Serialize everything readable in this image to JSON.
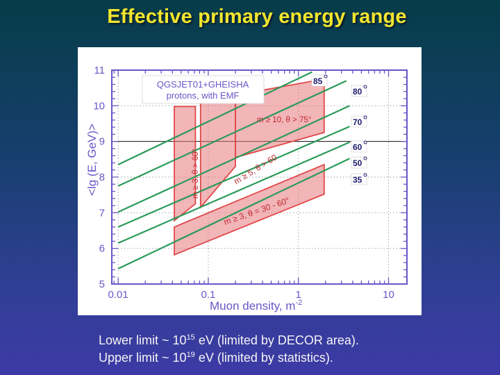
{
  "slide": {
    "title": "Effective primary energy range"
  },
  "captions": [
    {
      "before": "Lower limit ~ 10",
      "exp": "15",
      "after": " eV (limited by DECOR area)."
    },
    {
      "before": "Upper limit ~ 10",
      "exp": "19",
      "after": " eV (limited by statistics)."
    }
  ],
  "chart_data": {
    "type": "line",
    "title": "",
    "xlabel": "Muon density, m",
    "xlabel_superscript": "-2",
    "ylabel": "<lg (E, GeV)>",
    "x_scale": "log",
    "xlim": [
      0.0085,
      16
    ],
    "ylim": [
      5,
      11
    ],
    "x_ticks": [
      0.01,
      0.1,
      1,
      10
    ],
    "x_tick_labels": [
      "0.01",
      "0.1",
      "1",
      "10"
    ],
    "y_ticks": [
      5,
      6,
      7,
      8,
      9,
      10,
      11
    ],
    "y_tick_labels": [
      "5",
      "6",
      "7",
      "8",
      "9",
      "10",
      "11"
    ],
    "grid": true,
    "reference_line_y": 9,
    "legend_box": {
      "line1": "QGSJET01+GHEISHA",
      "line2": "protons, with EMF"
    },
    "line_color": "#2a9a5a",
    "region_color": "#e04848",
    "series": [
      {
        "name": "85°",
        "label": "85",
        "x": [
          0.01,
          1.42
        ],
        "y": [
          8.35,
          10.95
        ]
      },
      {
        "name": "80°",
        "label": "80",
        "x": [
          0.01,
          3.4
        ],
        "y": [
          7.75,
          10.7
        ]
      },
      {
        "name": "70°",
        "label": "70",
        "x": [
          0.01,
          3.7
        ],
        "y": [
          7.02,
          10.0
        ]
      },
      {
        "name": "60°",
        "label": "60",
        "x": [
          0.01,
          3.7
        ],
        "y": [
          6.6,
          9.42
        ]
      },
      {
        "name": "50°",
        "label": "50",
        "x": [
          0.01,
          3.7
        ],
        "y": [
          6.15,
          8.98
        ]
      },
      {
        "name": "35°",
        "label": "35",
        "x": [
          0.01,
          3.7
        ],
        "y": [
          5.43,
          8.52
        ]
      }
    ],
    "regions": [
      {
        "label": "m ≥ 3, θ > 60°",
        "x": [
          0.042,
          0.072,
          0.072,
          0.042
        ],
        "y": [
          6.78,
          7.25,
          9.98,
          9.98
        ]
      },
      {
        "label": "m ≥ 5, θ > 60",
        "x": [
          0.082,
          0.2,
          0.2,
          0.082
        ],
        "y": [
          7.15,
          8.3,
          10.55,
          10.55
        ]
      },
      {
        "label": "m ≥ 10, θ > 75°",
        "x": [
          0.2,
          1.93,
          1.93,
          0.2
        ],
        "y": [
          10.3,
          10.75,
          9.25,
          8.55
        ]
      },
      {
        "label": "m ≥ 3, θ = 30 - 60°",
        "x": [
          0.042,
          1.93,
          1.93,
          0.042
        ],
        "y": [
          6.6,
          8.35,
          7.52,
          5.82
        ]
      }
    ]
  }
}
